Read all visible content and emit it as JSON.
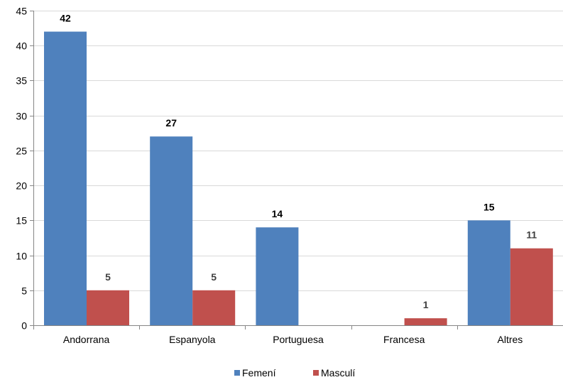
{
  "chart_data": {
    "type": "bar",
    "categories": [
      "Andorrana",
      "Espanyola",
      "Portuguesa",
      "Francesa",
      "Altres"
    ],
    "series": [
      {
        "name": "Femení",
        "color": "#4F81BD",
        "label_color": "#000000",
        "values": [
          42,
          27,
          14,
          null,
          15
        ]
      },
      {
        "name": "Masculí",
        "color": "#C0504D",
        "label_color": "#404040",
        "values": [
          5,
          5,
          null,
          1,
          11
        ]
      }
    ],
    "yticks": [
      0,
      5,
      10,
      15,
      20,
      25,
      30,
      35,
      40,
      45
    ],
    "ylim": [
      0,
      45
    ],
    "grid": true,
    "legend_position": "bottom",
    "data_labels": true
  }
}
